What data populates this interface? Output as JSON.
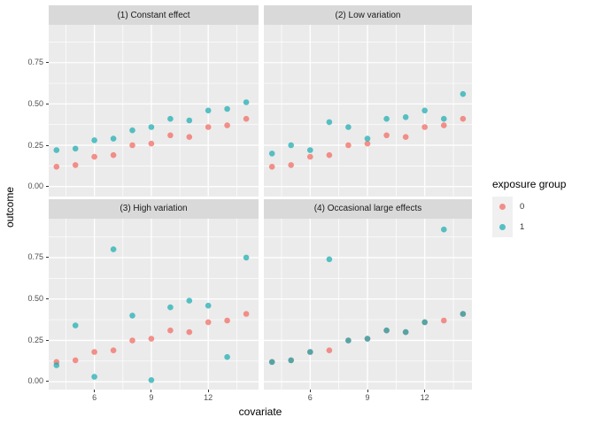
{
  "chart_data": {
    "type": "scatter",
    "title": "",
    "xlabel": "covariate",
    "ylabel": "outcome",
    "x_breaks": [
      6,
      9,
      12
    ],
    "x_tick_labels": [
      "6",
      "9",
      "12"
    ],
    "x_minor_breaks": [
      4.5,
      7.5,
      10.5,
      13.5
    ],
    "y_breaks": [
      0,
      0.25,
      0.5,
      0.75
    ],
    "y_tick_labels": [
      "0.00",
      "0.25",
      "0.50",
      "0.75"
    ],
    "y_minor_breaks": [
      0.125,
      0.375,
      0.625,
      0.875
    ],
    "x": [
      4,
      5,
      6,
      7,
      8,
      9,
      10,
      11,
      12,
      13,
      14
    ],
    "grid": true,
    "legend_position": "right",
    "facets": [
      {
        "title": "(1) Constant effect",
        "series": [
          {
            "name": "0",
            "values": [
              0.12,
              0.13,
              0.18,
              0.19,
              0.25,
              0.26,
              0.31,
              0.3,
              0.36,
              0.37,
              0.41
            ]
          },
          {
            "name": "1",
            "values": [
              0.22,
              0.23,
              0.28,
              0.29,
              0.34,
              0.36,
              0.41,
              0.4,
              0.46,
              0.47,
              0.51
            ]
          }
        ]
      },
      {
        "title": "(2) Low variation",
        "series": [
          {
            "name": "0",
            "values": [
              0.12,
              0.13,
              0.18,
              0.19,
              0.25,
              0.26,
              0.31,
              0.3,
              0.36,
              0.37,
              0.41
            ]
          },
          {
            "name": "1",
            "values": [
              0.2,
              0.25,
              0.22,
              0.39,
              0.36,
              0.29,
              0.41,
              0.42,
              0.46,
              0.41,
              0.56
            ]
          }
        ]
      },
      {
        "title": "(3) High variation",
        "series": [
          {
            "name": "0",
            "values": [
              0.12,
              0.13,
              0.18,
              0.19,
              0.25,
              0.26,
              0.31,
              0.3,
              0.36,
              0.37,
              0.41
            ]
          },
          {
            "name": "1",
            "values": [
              0.1,
              0.34,
              0.03,
              0.8,
              0.4,
              0.01,
              0.45,
              0.49,
              0.46,
              0.15,
              0.75
            ]
          }
        ]
      },
      {
        "title": "(4) Occasional large effects",
        "series": [
          {
            "name": "0",
            "values": [
              0.12,
              0.13,
              0.18,
              0.19,
              0.25,
              0.26,
              0.31,
              0.3,
              0.36,
              0.37,
              0.41
            ]
          },
          {
            "name": "1",
            "values": [
              0.12,
              0.13,
              0.18,
              0.74,
              0.25,
              0.26,
              0.31,
              0.3,
              0.36,
              0.92,
              0.41
            ]
          }
        ]
      }
    ],
    "legend": {
      "title": "exposure group",
      "entries": [
        {
          "label": "0"
        },
        {
          "label": "1"
        }
      ]
    }
  },
  "colors": {
    "group0_fill": "rgba(242,104,96,0.72)",
    "group1_fill": "rgba(26,172,176,0.72)",
    "group0_hex": "#ee918b",
    "group1_hex": "#54bfc2",
    "panel_bg": "#ebebeb",
    "strip_bg": "#d9d9d9",
    "grid": "#ffffff",
    "axis_text": "#4d4d4d",
    "tick_mark": "#333333",
    "legend_key_bg": "#f0f0f0"
  }
}
